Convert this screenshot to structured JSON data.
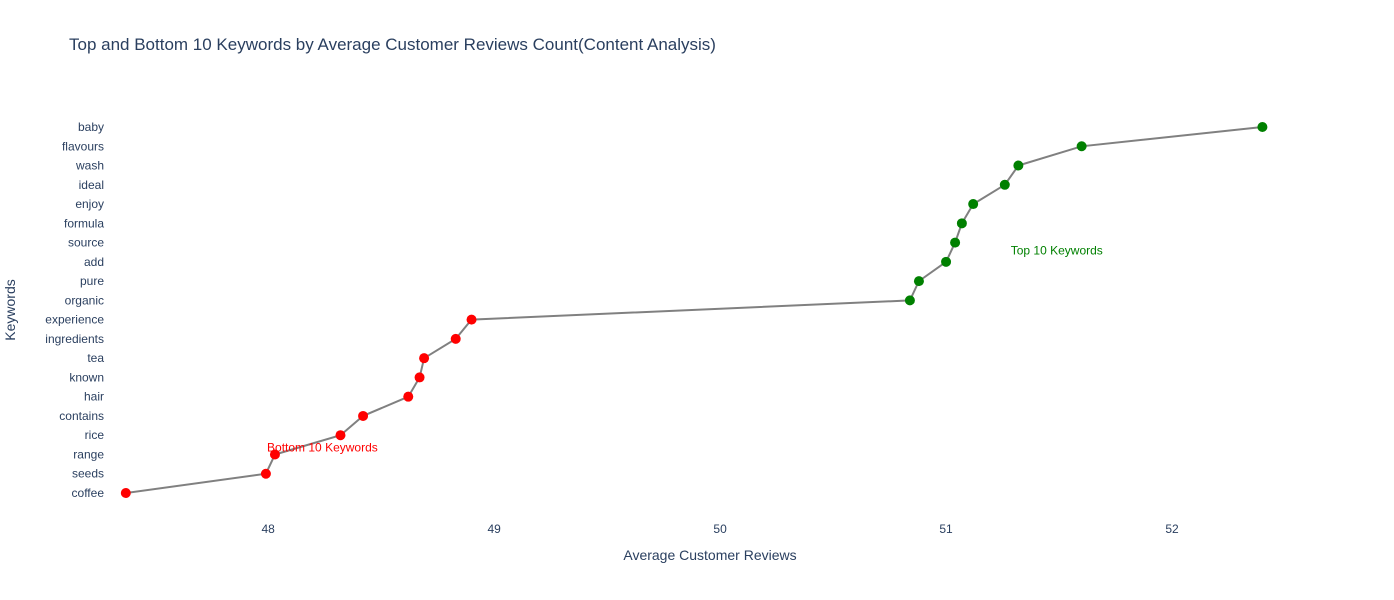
{
  "chart_data": {
    "type": "line",
    "title": "Top and Bottom 10 Keywords by Average Customer Reviews Count(Content Analysis)",
    "xlabel": "Average Customer Reviews",
    "ylabel": "Keywords",
    "xlim": [
      47.3,
      52.5
    ],
    "x_ticks": [
      48,
      49,
      50,
      51,
      52
    ],
    "grid": false,
    "categories": [
      "coffee",
      "seeds",
      "range",
      "rice",
      "contains",
      "hair",
      "known",
      "tea",
      "ingredients",
      "experience",
      "organic",
      "pure",
      "add",
      "source",
      "formula",
      "enjoy",
      "ideal",
      "wash",
      "flavours",
      "baby"
    ],
    "values": [
      47.37,
      47.99,
      48.03,
      48.32,
      48.42,
      48.62,
      48.67,
      48.69,
      48.83,
      48.9,
      50.84,
      50.88,
      51.0,
      51.04,
      51.07,
      51.12,
      51.26,
      51.32,
      51.6,
      52.4
    ],
    "line_color": "#808080",
    "groups": [
      {
        "name": "Bottom 10 Keywords",
        "color": "#ff0000",
        "indices": [
          0,
          1,
          2,
          3,
          4,
          5,
          6,
          7,
          8,
          9
        ]
      },
      {
        "name": "Top 10 Keywords",
        "color": "#008000",
        "indices": [
          10,
          11,
          12,
          13,
          14,
          15,
          16,
          17,
          18,
          19
        ]
      }
    ],
    "annotations": [
      {
        "text": "Bottom 10 Keywords",
        "x": 48.24,
        "y": 2.35,
        "color": "#ff0000"
      },
      {
        "text": "Top 10 Keywords",
        "x": 51.49,
        "y": 12.6,
        "color": "#008000"
      }
    ]
  }
}
